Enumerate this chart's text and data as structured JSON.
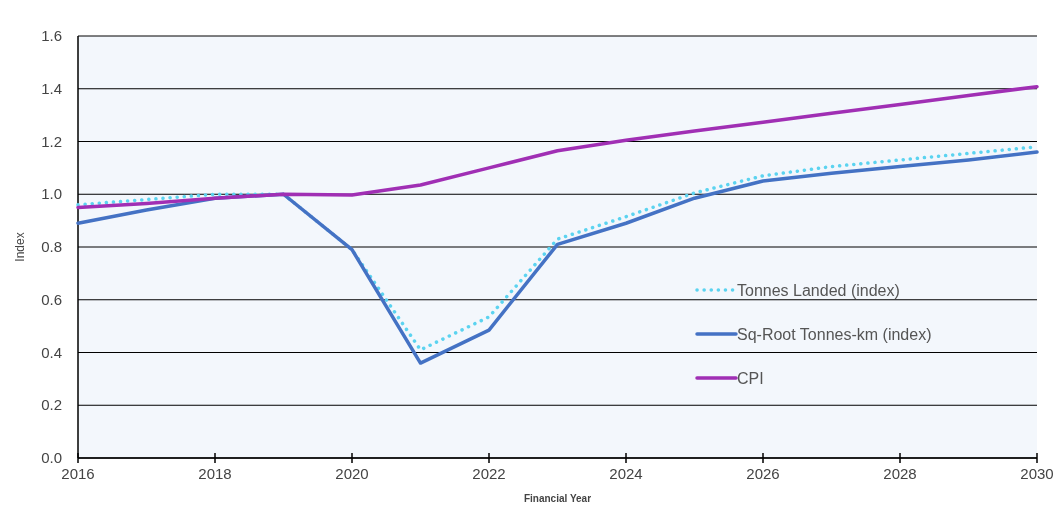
{
  "chart_data": {
    "type": "line",
    "xlabel": "Financial Year",
    "ylabel": "Index",
    "x": [
      2016,
      2017,
      2018,
      2019,
      2020,
      2021,
      2022,
      2023,
      2024,
      2025,
      2026,
      2027,
      2028,
      2029,
      2030
    ],
    "series": [
      {
        "name": "Tonnes Landed  (index)",
        "color": "#5bd3f0",
        "line_style": "dotted",
        "values": [
          0.96,
          0.98,
          1.0,
          1.0,
          0.79,
          0.41,
          0.535,
          0.83,
          0.915,
          1.005,
          1.07,
          1.105,
          1.13,
          1.155,
          1.18
        ]
      },
      {
        "name": "Sq-Root Tonnes-km (index)",
        "color": "#4472c4",
        "line_style": "solid",
        "values": [
          0.89,
          0.94,
          0.985,
          1.0,
          0.79,
          0.36,
          0.485,
          0.81,
          0.89,
          0.985,
          1.05,
          1.08,
          1.105,
          1.13,
          1.16
        ]
      },
      {
        "name": "CPI",
        "color": "#a02fb4",
        "line_style": "solid",
        "values": [
          0.95,
          0.965,
          0.985,
          1.0,
          0.997,
          1.035,
          1.1,
          1.165,
          1.205,
          1.24,
          1.273,
          1.307,
          1.34,
          1.374,
          1.408
        ]
      }
    ],
    "xlim": [
      2016,
      2030
    ],
    "xticks": [
      2016,
      2018,
      2020,
      2022,
      2024,
      2026,
      2028,
      2030
    ],
    "ylim": [
      0,
      1.6
    ],
    "yticks": [
      {
        "value": 0,
        "label": "0.0"
      },
      0.2,
      0.4,
      0.6,
      0.8,
      {
        "value": 1,
        "label": "1.0"
      },
      1.2,
      1.4,
      1.6
    ],
    "grid": "y",
    "legend": "right",
    "marker": "none"
  }
}
